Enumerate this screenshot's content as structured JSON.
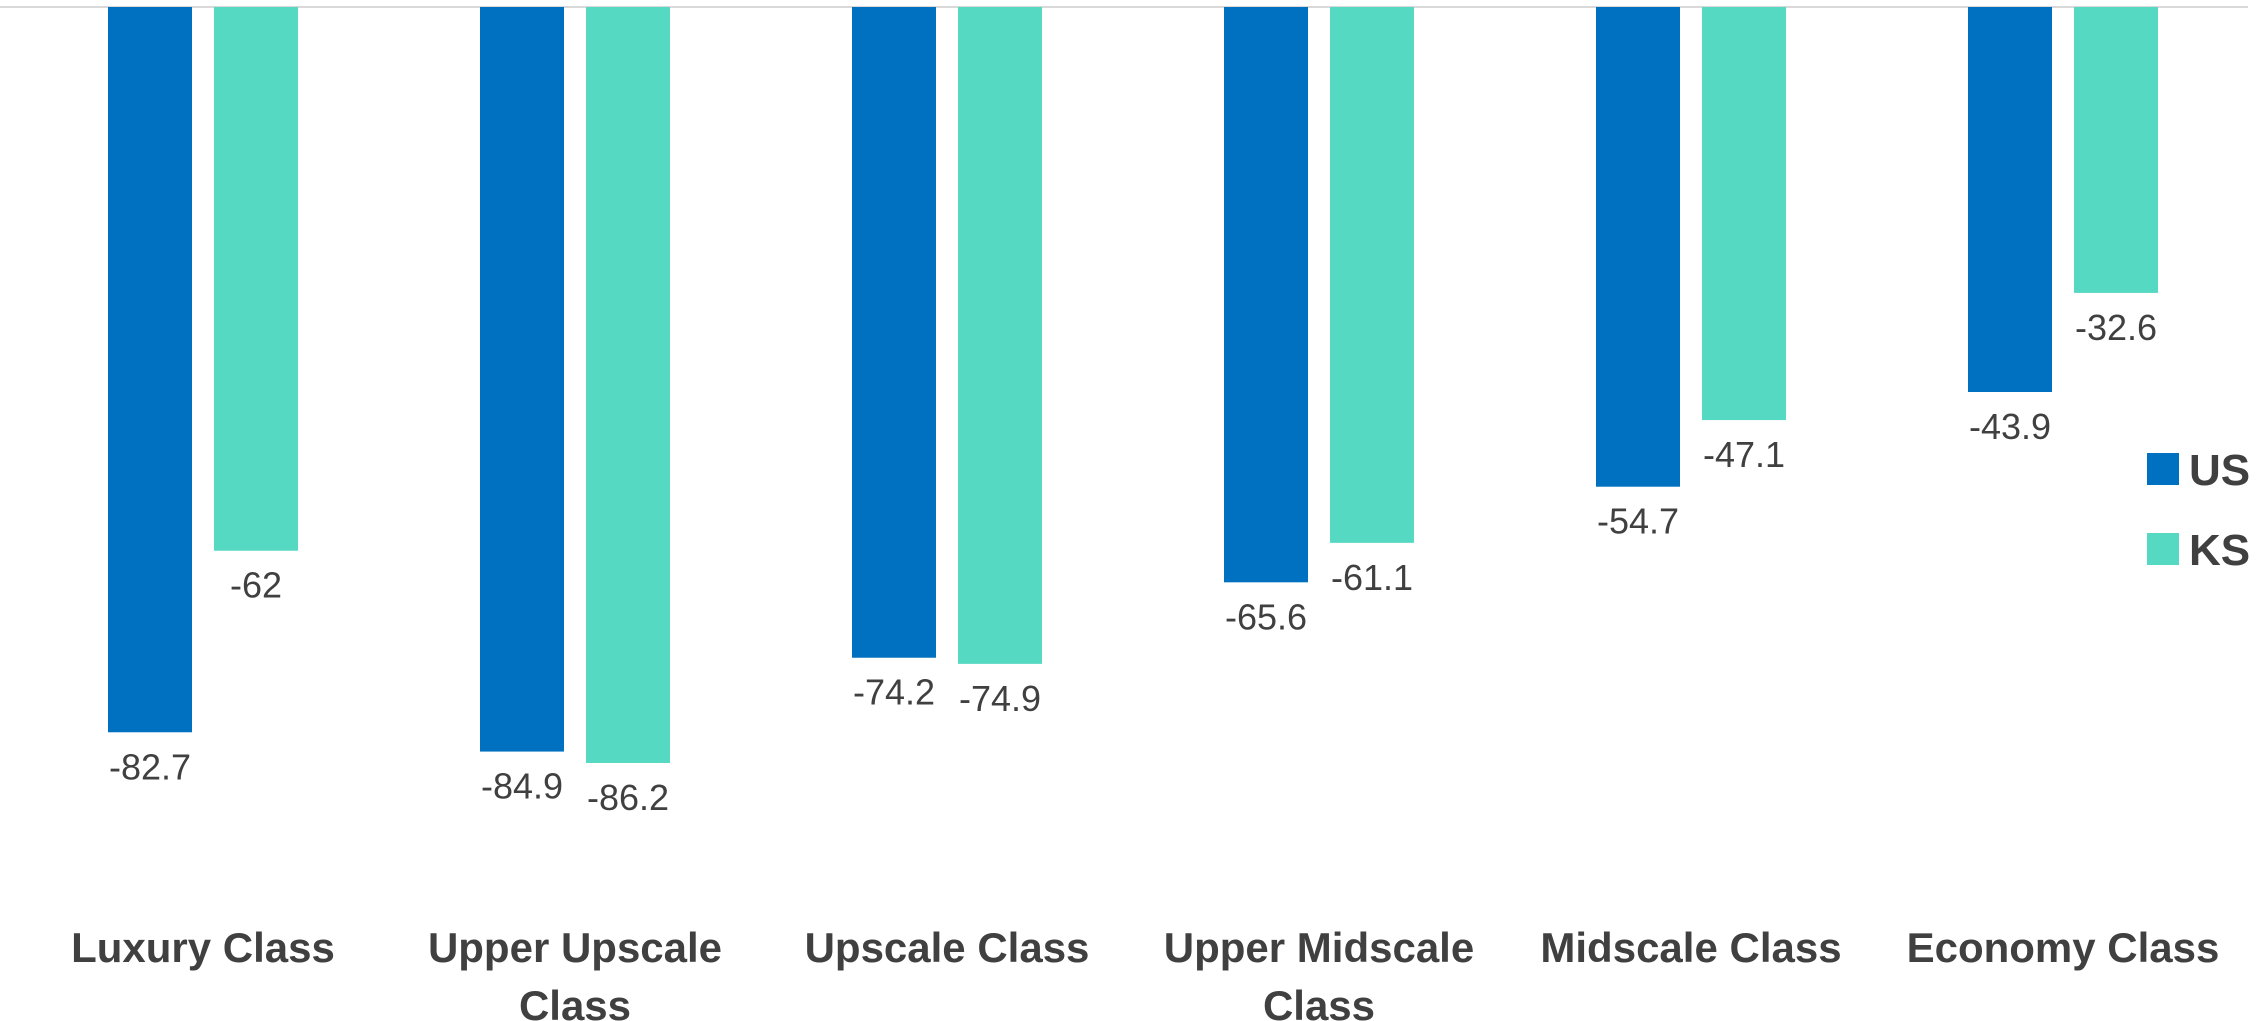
{
  "chart_data": {
    "type": "bar",
    "categories": [
      "Luxury Class",
      "Upper Upscale Class",
      "Upscale Class",
      "Upper Midscale Class",
      "Midscale Class",
      "Economy Class"
    ],
    "series": [
      {
        "name": "US",
        "color": "#0070C0",
        "values": [
          -82.7,
          -84.9,
          -74.2,
          -65.6,
          -54.7,
          -43.9
        ],
        "labels": [
          "-82.7",
          "-84.9",
          "-74.2",
          "-65.6",
          "-54.7",
          "-43.9"
        ]
      },
      {
        "name": "KS",
        "color": "#56D9C2",
        "values": [
          -62,
          -86.2,
          -74.9,
          -61.1,
          -47.1,
          -32.6
        ],
        "labels": [
          "-62",
          "-86.2",
          "-74.9",
          "-61.1",
          "-47.1",
          "-32.6"
        ]
      }
    ],
    "title": "",
    "xlabel": "",
    "ylabel": "",
    "ylim": [
      -90,
      0
    ],
    "grid": false,
    "legend_position": "right",
    "data_labels": true
  }
}
